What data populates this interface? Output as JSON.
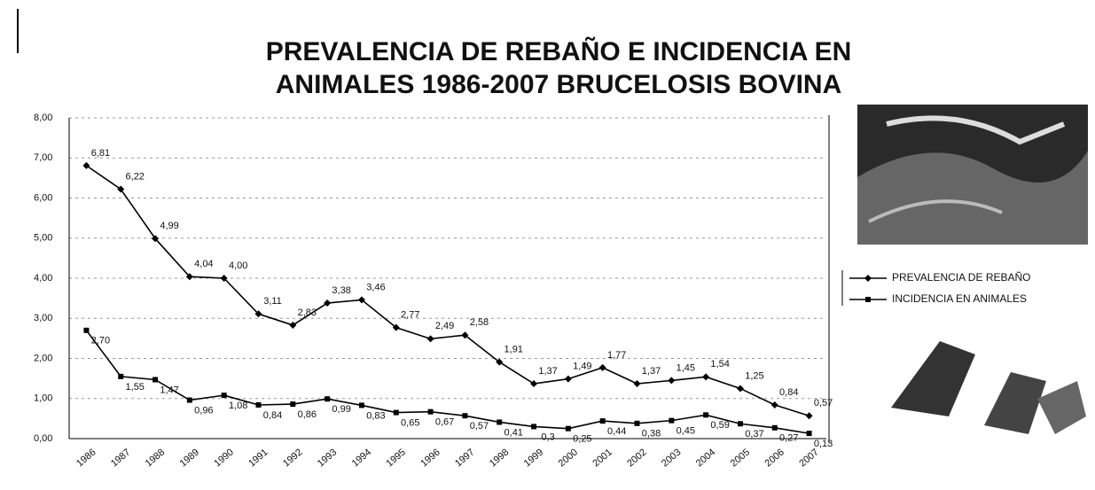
{
  "chart_data": {
    "type": "line",
    "title": [
      "PREVALENCIA DE REBAÑO E INCIDENCIA EN",
      "ANIMALES 1986-2007 BRUCELOSIS BOVINA"
    ],
    "categories": [
      "1986",
      "1987",
      "1988",
      "1989",
      "1990",
      "1991",
      "1992",
      "1993",
      "1994",
      "1995",
      "1996",
      "1997",
      "1998",
      "1999",
      "2000",
      "2001",
      "2002",
      "2003",
      "2004",
      "2005",
      "2006",
      "2007"
    ],
    "series": [
      {
        "name": "PREVALENCIA DE REBAÑO",
        "color": "#000000",
        "marker": "diamond",
        "values": [
          6.81,
          6.22,
          4.99,
          4.04,
          4.0,
          3.11,
          2.83,
          3.38,
          3.46,
          2.77,
          2.49,
          2.58,
          1.91,
          1.37,
          1.49,
          1.77,
          1.37,
          1.45,
          1.54,
          1.25,
          0.84,
          0.57
        ],
        "value_labels": [
          "6,81",
          "6,22",
          "4,99",
          "4,04",
          "4,00",
          "3,11",
          "2,83",
          "3,38",
          "3,46",
          "2,77",
          "2,49",
          "2,58",
          "1,91",
          "1,37",
          "1,49",
          "1,77",
          "1,37",
          "1,45",
          "1,54",
          "1,25",
          "0,84",
          "0,57"
        ]
      },
      {
        "name": "INCIDENCIA EN ANIMALES",
        "color": "#000000",
        "marker": "square",
        "values": [
          2.7,
          1.55,
          1.47,
          0.96,
          1.08,
          0.84,
          0.86,
          0.99,
          0.83,
          0.65,
          0.67,
          0.57,
          0.41,
          0.3,
          0.25,
          0.44,
          0.38,
          0.45,
          0.59,
          0.37,
          0.27,
          0.13
        ],
        "value_labels": [
          "2,70",
          "1,55",
          "1,47",
          "0,96",
          "1,08",
          "0,84",
          "0,86",
          "0,99",
          "0,83",
          "0,65",
          "0,67",
          "0,57",
          "0,41",
          "0,3",
          "0,25",
          "0,44",
          "0,38",
          "0,45",
          "0,59",
          "0,37",
          "0,27",
          "0,13"
        ]
      }
    ],
    "ylim": [
      0,
      8
    ],
    "yticks": [
      {
        "value": 0,
        "label": "0,00"
      },
      {
        "value": 1,
        "label": "1,00"
      },
      {
        "value": 2,
        "label": "2,00"
      },
      {
        "value": 3,
        "label": "3,00"
      },
      {
        "value": 4,
        "label": "4,00"
      },
      {
        "value": 5,
        "label": "5,00"
      },
      {
        "value": 6,
        "label": "6,00"
      },
      {
        "value": 7,
        "label": "7,00"
      },
      {
        "value": 8,
        "label": "8,00"
      }
    ],
    "grid": true,
    "legend": "right"
  }
}
